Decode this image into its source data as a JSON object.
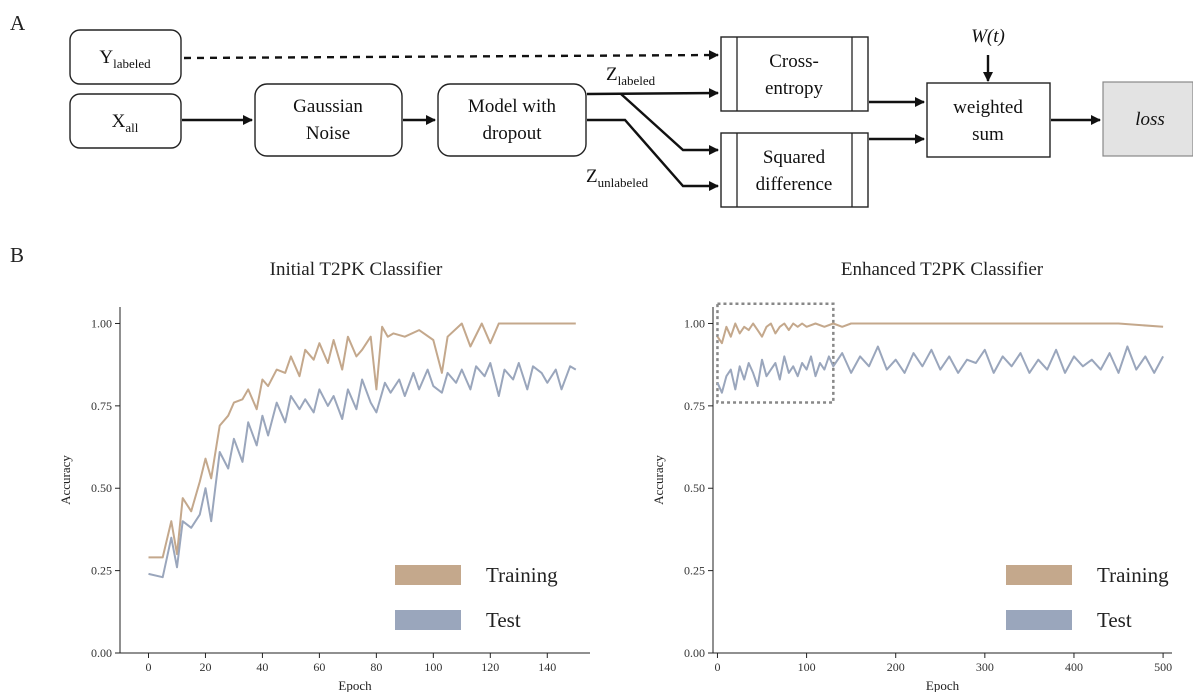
{
  "panels": {
    "a": "A",
    "b": "B"
  },
  "diagram": {
    "y_labeled": {
      "main": "Y",
      "sub": "labeled"
    },
    "x_all": {
      "main": "X",
      "sub": "all"
    },
    "gaussian_noise": [
      "Gaussian",
      "Noise"
    ],
    "model_dropout": [
      "Model with",
      "dropout"
    ],
    "z_labeled": {
      "main": "Z",
      "sub": "labeled"
    },
    "z_unlabeled": {
      "main": "Z",
      "sub": "unlabeled"
    },
    "cross_entropy": [
      "Cross-",
      "entropy"
    ],
    "squared_difference": [
      "Squared",
      "difference"
    ],
    "w_t": "W(t)",
    "weighted_sum": [
      "weighted",
      "sum"
    ],
    "loss": "loss"
  },
  "colors": {
    "training": "#c4a88c",
    "test": "#9aa6bc"
  },
  "chart_data": [
    {
      "type": "line",
      "title": "Initial T2PK Classifier",
      "xlabel": "Epoch",
      "ylabel": "Accuracy",
      "xlim": [
        -10,
        155
      ],
      "ylim": [
        0,
        1.05
      ],
      "xticks": [
        "0",
        "20",
        "40",
        "60",
        "80",
        "100",
        "120",
        "140"
      ],
      "yticks": [
        "0.00",
        "0.25",
        "0.50",
        "0.75",
        "1.00"
      ],
      "legend": {
        "position": "lower-right",
        "entries": [
          "Training",
          "Test"
        ]
      },
      "series": [
        {
          "name": "Training",
          "color": "#c4a88c",
          "x": [
            0,
            5,
            8,
            10,
            12,
            15,
            18,
            20,
            22,
            25,
            28,
            30,
            33,
            35,
            38,
            40,
            42,
            45,
            48,
            50,
            53,
            55,
            58,
            60,
            63,
            65,
            68,
            70,
            73,
            75,
            78,
            80,
            82,
            84,
            86,
            90,
            95,
            100,
            103,
            105,
            110,
            113,
            117,
            120,
            123,
            125,
            130,
            135,
            140,
            145,
            150
          ],
          "y": [
            0.29,
            0.29,
            0.4,
            0.3,
            0.47,
            0.43,
            0.52,
            0.59,
            0.53,
            0.69,
            0.72,
            0.76,
            0.77,
            0.8,
            0.74,
            0.83,
            0.81,
            0.86,
            0.85,
            0.9,
            0.84,
            0.92,
            0.89,
            0.94,
            0.88,
            0.95,
            0.86,
            0.96,
            0.9,
            0.92,
            0.96,
            0.8,
            0.99,
            0.96,
            0.97,
            0.96,
            0.98,
            0.95,
            0.85,
            0.96,
            1.0,
            0.93,
            1.0,
            0.94,
            1.0,
            1.0,
            1.0,
            1.0,
            1.0,
            1.0,
            1.0
          ]
        },
        {
          "name": "Test",
          "color": "#9aa6bc",
          "x": [
            0,
            5,
            8,
            10,
            12,
            15,
            18,
            20,
            22,
            25,
            28,
            30,
            33,
            35,
            38,
            40,
            42,
            45,
            48,
            50,
            53,
            55,
            58,
            60,
            63,
            65,
            68,
            70,
            73,
            75,
            78,
            80,
            83,
            85,
            88,
            90,
            93,
            95,
            98,
            100,
            103,
            105,
            108,
            110,
            113,
            115,
            118,
            120,
            123,
            125,
            128,
            130,
            133,
            135,
            138,
            140,
            143,
            145,
            148,
            150
          ],
          "y": [
            0.24,
            0.23,
            0.35,
            0.26,
            0.4,
            0.38,
            0.42,
            0.5,
            0.4,
            0.61,
            0.56,
            0.65,
            0.58,
            0.7,
            0.63,
            0.72,
            0.66,
            0.76,
            0.7,
            0.78,
            0.74,
            0.77,
            0.73,
            0.8,
            0.75,
            0.78,
            0.71,
            0.8,
            0.74,
            0.83,
            0.76,
            0.73,
            0.82,
            0.79,
            0.83,
            0.78,
            0.85,
            0.8,
            0.86,
            0.81,
            0.79,
            0.85,
            0.82,
            0.86,
            0.8,
            0.87,
            0.84,
            0.88,
            0.78,
            0.86,
            0.83,
            0.88,
            0.8,
            0.87,
            0.85,
            0.82,
            0.86,
            0.8,
            0.87,
            0.86
          ]
        }
      ]
    },
    {
      "type": "line",
      "title": "Enhanced T2PK Classifier",
      "xlabel": "Epoch",
      "ylabel": "Accuracy",
      "xlim": [
        -5,
        510
      ],
      "ylim": [
        0,
        1.05
      ],
      "xticks": [
        "0",
        "100",
        "200",
        "300",
        "400",
        "500"
      ],
      "yticks": [
        "0.00",
        "0.25",
        "0.50",
        "0.75",
        "1.00"
      ],
      "legend": {
        "position": "lower-right",
        "entries": [
          "Training",
          "Test"
        ]
      },
      "highlight_box_x": [
        0,
        130
      ],
      "highlight_box_y": [
        0.76,
        1.06
      ],
      "series": [
        {
          "name": "Training",
          "color": "#c4a88c",
          "x": [
            0,
            5,
            10,
            15,
            20,
            25,
            30,
            35,
            40,
            45,
            50,
            55,
            60,
            65,
            70,
            75,
            80,
            85,
            90,
            95,
            100,
            110,
            120,
            130,
            140,
            150,
            200,
            250,
            300,
            350,
            400,
            450,
            500
          ],
          "y": [
            0.96,
            0.94,
            0.99,
            0.96,
            1.0,
            0.97,
            0.99,
            0.98,
            1.0,
            0.98,
            0.96,
            0.99,
            1.0,
            0.97,
            0.99,
            1.0,
            0.98,
            1.0,
            0.99,
            1.0,
            0.99,
            1.0,
            0.99,
            1.0,
            0.99,
            1.0,
            1.0,
            1.0,
            1.0,
            1.0,
            1.0,
            1.0,
            0.99
          ]
        },
        {
          "name": "Test",
          "color": "#9aa6bc",
          "x": [
            0,
            5,
            10,
            15,
            20,
            25,
            30,
            35,
            40,
            45,
            50,
            55,
            60,
            65,
            70,
            75,
            80,
            85,
            90,
            95,
            100,
            105,
            110,
            115,
            120,
            125,
            130,
            140,
            150,
            160,
            170,
            180,
            190,
            200,
            210,
            220,
            230,
            240,
            250,
            260,
            270,
            280,
            290,
            300,
            310,
            320,
            330,
            340,
            350,
            360,
            370,
            380,
            390,
            400,
            410,
            420,
            430,
            440,
            450,
            460,
            470,
            480,
            490,
            500
          ],
          "y": [
            0.82,
            0.79,
            0.84,
            0.86,
            0.8,
            0.87,
            0.83,
            0.88,
            0.85,
            0.81,
            0.89,
            0.84,
            0.86,
            0.88,
            0.83,
            0.9,
            0.85,
            0.87,
            0.84,
            0.88,
            0.86,
            0.9,
            0.84,
            0.88,
            0.86,
            0.9,
            0.87,
            0.91,
            0.85,
            0.9,
            0.87,
            0.93,
            0.86,
            0.89,
            0.85,
            0.91,
            0.87,
            0.92,
            0.86,
            0.9,
            0.85,
            0.89,
            0.88,
            0.92,
            0.85,
            0.9,
            0.87,
            0.91,
            0.85,
            0.89,
            0.86,
            0.92,
            0.85,
            0.9,
            0.87,
            0.89,
            0.86,
            0.91,
            0.85,
            0.93,
            0.86,
            0.9,
            0.85,
            0.9
          ]
        }
      ]
    }
  ]
}
